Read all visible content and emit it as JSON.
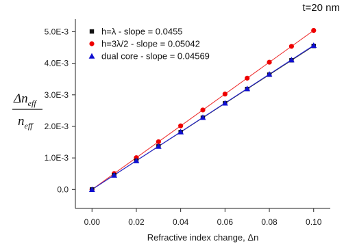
{
  "chart_data": {
    "type": "scatter",
    "annotation": "t=20 nm",
    "xlabel": "Refractive index change, Δn",
    "ylabel": {
      "numerator_symbol": "Δn",
      "numerator_sub": "eff",
      "denominator_symbol": "n",
      "denominator_sub": "eff"
    },
    "xlim": [
      -0.0075,
      0.1075
    ],
    "ylim": [
      -0.0006,
      0.0054
    ],
    "x_ticks": [
      0.0,
      0.02,
      0.04,
      0.06,
      0.08,
      0.1
    ],
    "x_tick_labels": [
      "0.00",
      "0.02",
      "0.04",
      "0.06",
      "0.08",
      "0.10"
    ],
    "y_ticks": [
      0.0,
      0.001,
      0.002,
      0.003,
      0.004,
      0.005
    ],
    "y_tick_labels": [
      "0.0",
      "1.0E-3",
      "2.0E-3",
      "3.0E-3",
      "4.0E-3",
      "5.0E-3"
    ],
    "grid": false,
    "legend_position": "top-left",
    "series": [
      {
        "name": "h=λ - slope = 0.0455",
        "marker": "square",
        "color": "#111111",
        "line_color": "#2a2a2a",
        "slope": 0.0455,
        "x": [
          0.0,
          0.01,
          0.02,
          0.03,
          0.04,
          0.05,
          0.06,
          0.07,
          0.08,
          0.09,
          0.1
        ],
        "y": [
          0.0,
          0.000455,
          0.00091,
          0.001365,
          0.00182,
          0.002275,
          0.00273,
          0.003185,
          0.00364,
          0.004095,
          0.00455
        ]
      },
      {
        "name": "h=3λ/2 - slope = 0.05042",
        "marker": "circle",
        "color": "#ee0000",
        "line_color": "#ee3333",
        "slope": 0.05042,
        "x": [
          0.0,
          0.01,
          0.02,
          0.03,
          0.04,
          0.05,
          0.06,
          0.07,
          0.08,
          0.09,
          0.1
        ],
        "y": [
          0.0,
          0.000504,
          0.001008,
          0.001513,
          0.002017,
          0.002521,
          0.003025,
          0.003529,
          0.004034,
          0.004538,
          0.005042
        ]
      },
      {
        "name": "dual core - slope = 0.04569",
        "marker": "triangle",
        "color": "#1010d0",
        "line_color": "#2a2ad8",
        "slope": 0.04569,
        "x": [
          0.0,
          0.01,
          0.02,
          0.03,
          0.04,
          0.05,
          0.06,
          0.07,
          0.08,
          0.09,
          0.1
        ],
        "y": [
          0.0,
          0.000457,
          0.000914,
          0.001371,
          0.001828,
          0.002285,
          0.002741,
          0.003198,
          0.003655,
          0.004112,
          0.004569
        ]
      }
    ]
  }
}
